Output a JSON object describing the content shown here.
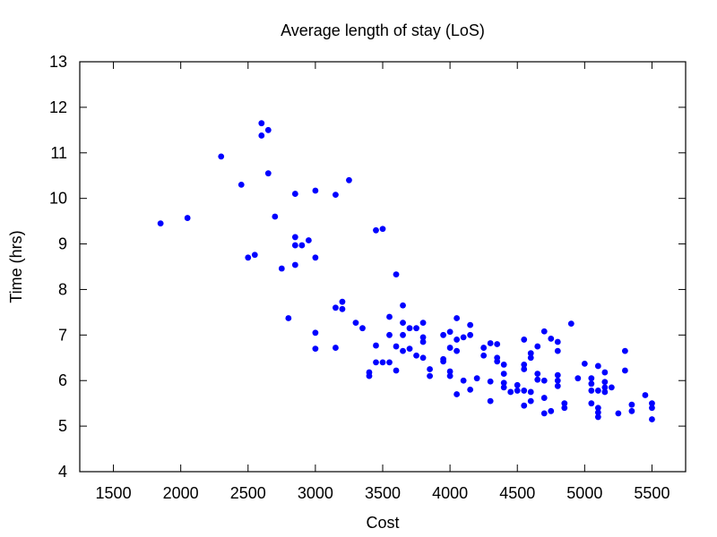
{
  "chart_data": {
    "type": "scatter",
    "title": "Average length of stay (LoS)",
    "xlabel": "Cost",
    "ylabel": "Time (hrs)",
    "xlim": [
      1250,
      5750
    ],
    "ylim": [
      4,
      13
    ],
    "xticks": [
      1500,
      2000,
      2500,
      3000,
      3500,
      4000,
      4500,
      5000,
      5500
    ],
    "yticks": [
      4,
      5,
      6,
      7,
      8,
      9,
      10,
      11,
      12,
      13
    ],
    "grid": false,
    "legend": "none",
    "marker_color": "#0000ff",
    "series": [
      {
        "points": [
          [
            1850,
            9.45
          ],
          [
            2050,
            9.57
          ],
          [
            2300,
            10.92
          ],
          [
            2450,
            10.3
          ],
          [
            2500,
            8.7
          ],
          [
            2550,
            8.76
          ],
          [
            2600,
            11.65
          ],
          [
            2600,
            11.38
          ],
          [
            2650,
            11.5
          ],
          [
            2650,
            10.55
          ],
          [
            2700,
            9.6
          ],
          [
            2750,
            8.46
          ],
          [
            2800,
            7.37
          ],
          [
            2850,
            10.1
          ],
          [
            2850,
            9.15
          ],
          [
            2850,
            8.97
          ],
          [
            2850,
            8.54
          ],
          [
            2900,
            8.97
          ],
          [
            2950,
            9.08
          ],
          [
            3000,
            10.17
          ],
          [
            3000,
            8.7
          ],
          [
            3000,
            7.05
          ],
          [
            3000,
            6.7
          ],
          [
            3150,
            10.08
          ],
          [
            3150,
            7.6
          ],
          [
            3150,
            6.72
          ],
          [
            3200,
            7.73
          ],
          [
            3200,
            7.57
          ],
          [
            3250,
            10.4
          ],
          [
            3300,
            7.27
          ],
          [
            3350,
            7.15
          ],
          [
            3400,
            6.18
          ],
          [
            3400,
            6.1
          ],
          [
            3450,
            9.3
          ],
          [
            3450,
            6.77
          ],
          [
            3450,
            6.4
          ],
          [
            3500,
            9.33
          ],
          [
            3500,
            6.4
          ],
          [
            3550,
            7.4
          ],
          [
            3550,
            7.0
          ],
          [
            3550,
            6.4
          ],
          [
            3600,
            8.33
          ],
          [
            3600,
            6.75
          ],
          [
            3600,
            6.22
          ],
          [
            3650,
            7.65
          ],
          [
            3650,
            7.27
          ],
          [
            3650,
            7.0
          ],
          [
            3650,
            6.65
          ],
          [
            3700,
            7.15
          ],
          [
            3700,
            6.7
          ],
          [
            3750,
            7.15
          ],
          [
            3750,
            6.55
          ],
          [
            3800,
            7.27
          ],
          [
            3800,
            6.95
          ],
          [
            3800,
            6.85
          ],
          [
            3800,
            6.5
          ],
          [
            3850,
            6.25
          ],
          [
            3850,
            6.1
          ],
          [
            3950,
            7.0
          ],
          [
            3950,
            6.47
          ],
          [
            3950,
            6.42
          ],
          [
            4000,
            7.07
          ],
          [
            4000,
            6.72
          ],
          [
            4000,
            6.2
          ],
          [
            4000,
            6.1
          ],
          [
            4050,
            7.37
          ],
          [
            4050,
            6.9
          ],
          [
            4050,
            6.65
          ],
          [
            4050,
            5.7
          ],
          [
            4100,
            6.95
          ],
          [
            4100,
            6.0
          ],
          [
            4150,
            7.22
          ],
          [
            4150,
            7.0
          ],
          [
            4150,
            5.8
          ],
          [
            4200,
            6.05
          ],
          [
            4250,
            6.72
          ],
          [
            4250,
            6.55
          ],
          [
            4300,
            6.82
          ],
          [
            4300,
            5.98
          ],
          [
            4300,
            5.55
          ],
          [
            4350,
            6.8
          ],
          [
            4350,
            6.5
          ],
          [
            4350,
            6.42
          ],
          [
            4400,
            6.35
          ],
          [
            4400,
            6.15
          ],
          [
            4400,
            5.95
          ],
          [
            4400,
            5.85
          ],
          [
            4450,
            5.75
          ],
          [
            4500,
            5.9
          ],
          [
            4500,
            5.78
          ],
          [
            4550,
            6.9
          ],
          [
            4550,
            6.35
          ],
          [
            4550,
            6.25
          ],
          [
            4550,
            5.78
          ],
          [
            4550,
            5.45
          ],
          [
            4600,
            6.6
          ],
          [
            4600,
            6.5
          ],
          [
            4600,
            5.75
          ],
          [
            4600,
            5.55
          ],
          [
            4650,
            6.75
          ],
          [
            4650,
            6.15
          ],
          [
            4650,
            6.02
          ],
          [
            4700,
            7.08
          ],
          [
            4700,
            6.0
          ],
          [
            4700,
            5.62
          ],
          [
            4700,
            5.28
          ],
          [
            4750,
            6.92
          ],
          [
            4750,
            5.33
          ],
          [
            4800,
            6.85
          ],
          [
            4800,
            6.65
          ],
          [
            4800,
            6.12
          ],
          [
            4800,
            6.0
          ],
          [
            4800,
            5.88
          ],
          [
            4850,
            5.5
          ],
          [
            4850,
            5.4
          ],
          [
            4900,
            7.25
          ],
          [
            4950,
            6.05
          ],
          [
            5000,
            6.37
          ],
          [
            5050,
            6.05
          ],
          [
            5050,
            5.93
          ],
          [
            5050,
            5.78
          ],
          [
            5050,
            5.5
          ],
          [
            5100,
            6.32
          ],
          [
            5100,
            5.78
          ],
          [
            5100,
            5.4
          ],
          [
            5100,
            5.3
          ],
          [
            5100,
            5.2
          ],
          [
            5150,
            6.18
          ],
          [
            5150,
            5.97
          ],
          [
            5150,
            5.85
          ],
          [
            5150,
            5.75
          ],
          [
            5200,
            5.85
          ],
          [
            5250,
            5.28
          ],
          [
            5300,
            6.65
          ],
          [
            5300,
            6.22
          ],
          [
            5350,
            5.47
          ],
          [
            5350,
            5.33
          ],
          [
            5450,
            5.68
          ],
          [
            5500,
            5.5
          ],
          [
            5500,
            5.4
          ],
          [
            5500,
            5.15
          ]
        ]
      }
    ]
  }
}
